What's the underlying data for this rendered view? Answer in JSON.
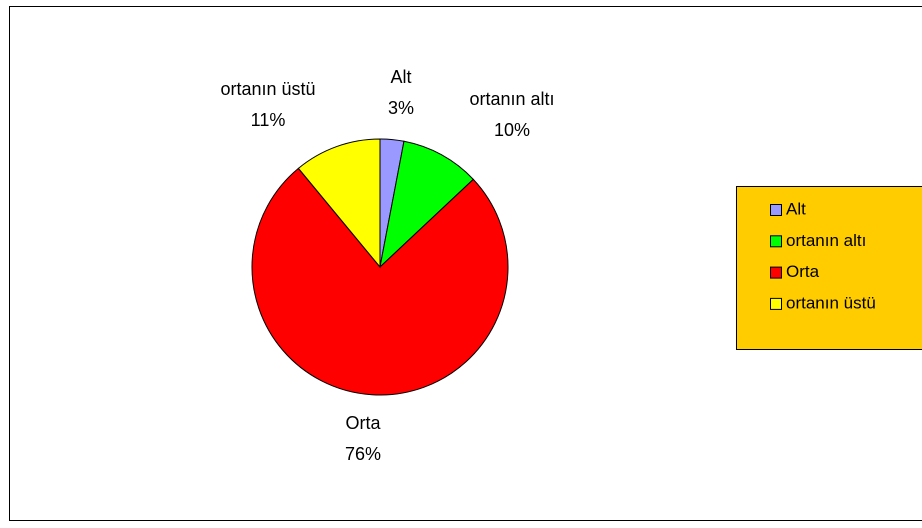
{
  "chart_data": {
    "type": "pie",
    "categories": [
      "Alt",
      "ortanın altı",
      "Orta",
      "ortanın üstü"
    ],
    "values": [
      3,
      10,
      76,
      11
    ],
    "value_labels": [
      "3%",
      "10%",
      "76%",
      "11%"
    ],
    "colors": [
      "#9999ff",
      "#00ff00",
      "#ff0000",
      "#ffff00"
    ],
    "legend": "right"
  }
}
